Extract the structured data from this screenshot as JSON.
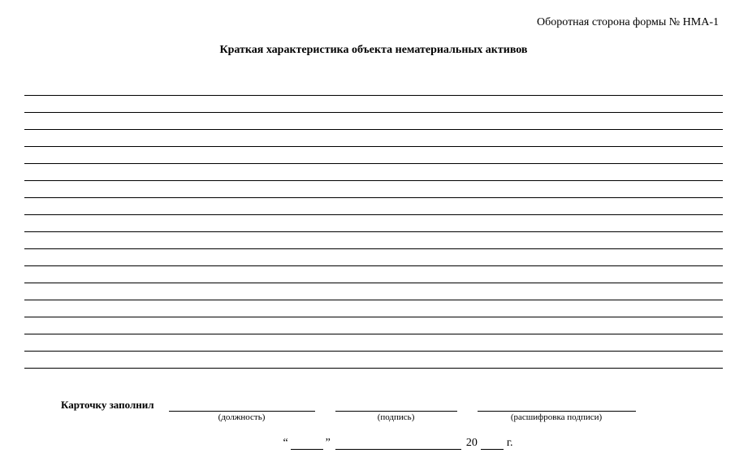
{
  "header": {
    "form_ref": "Оборотная сторона формы № НМА-1"
  },
  "title": "Краткая характеристика объекта нематериальных активов",
  "lines_count": 17,
  "signature": {
    "label": "Карточку заполнил",
    "fields": [
      {
        "sub": "(должность)"
      },
      {
        "sub": "(подпись)"
      },
      {
        "sub": "(расшифровка подписи)"
      }
    ]
  },
  "date": {
    "left_quote": "“",
    "right_quote": "”",
    "century": "20",
    "year_suffix": "г."
  },
  "colors": {
    "text": "#000000",
    "background": "#ffffff",
    "line": "#000000"
  }
}
